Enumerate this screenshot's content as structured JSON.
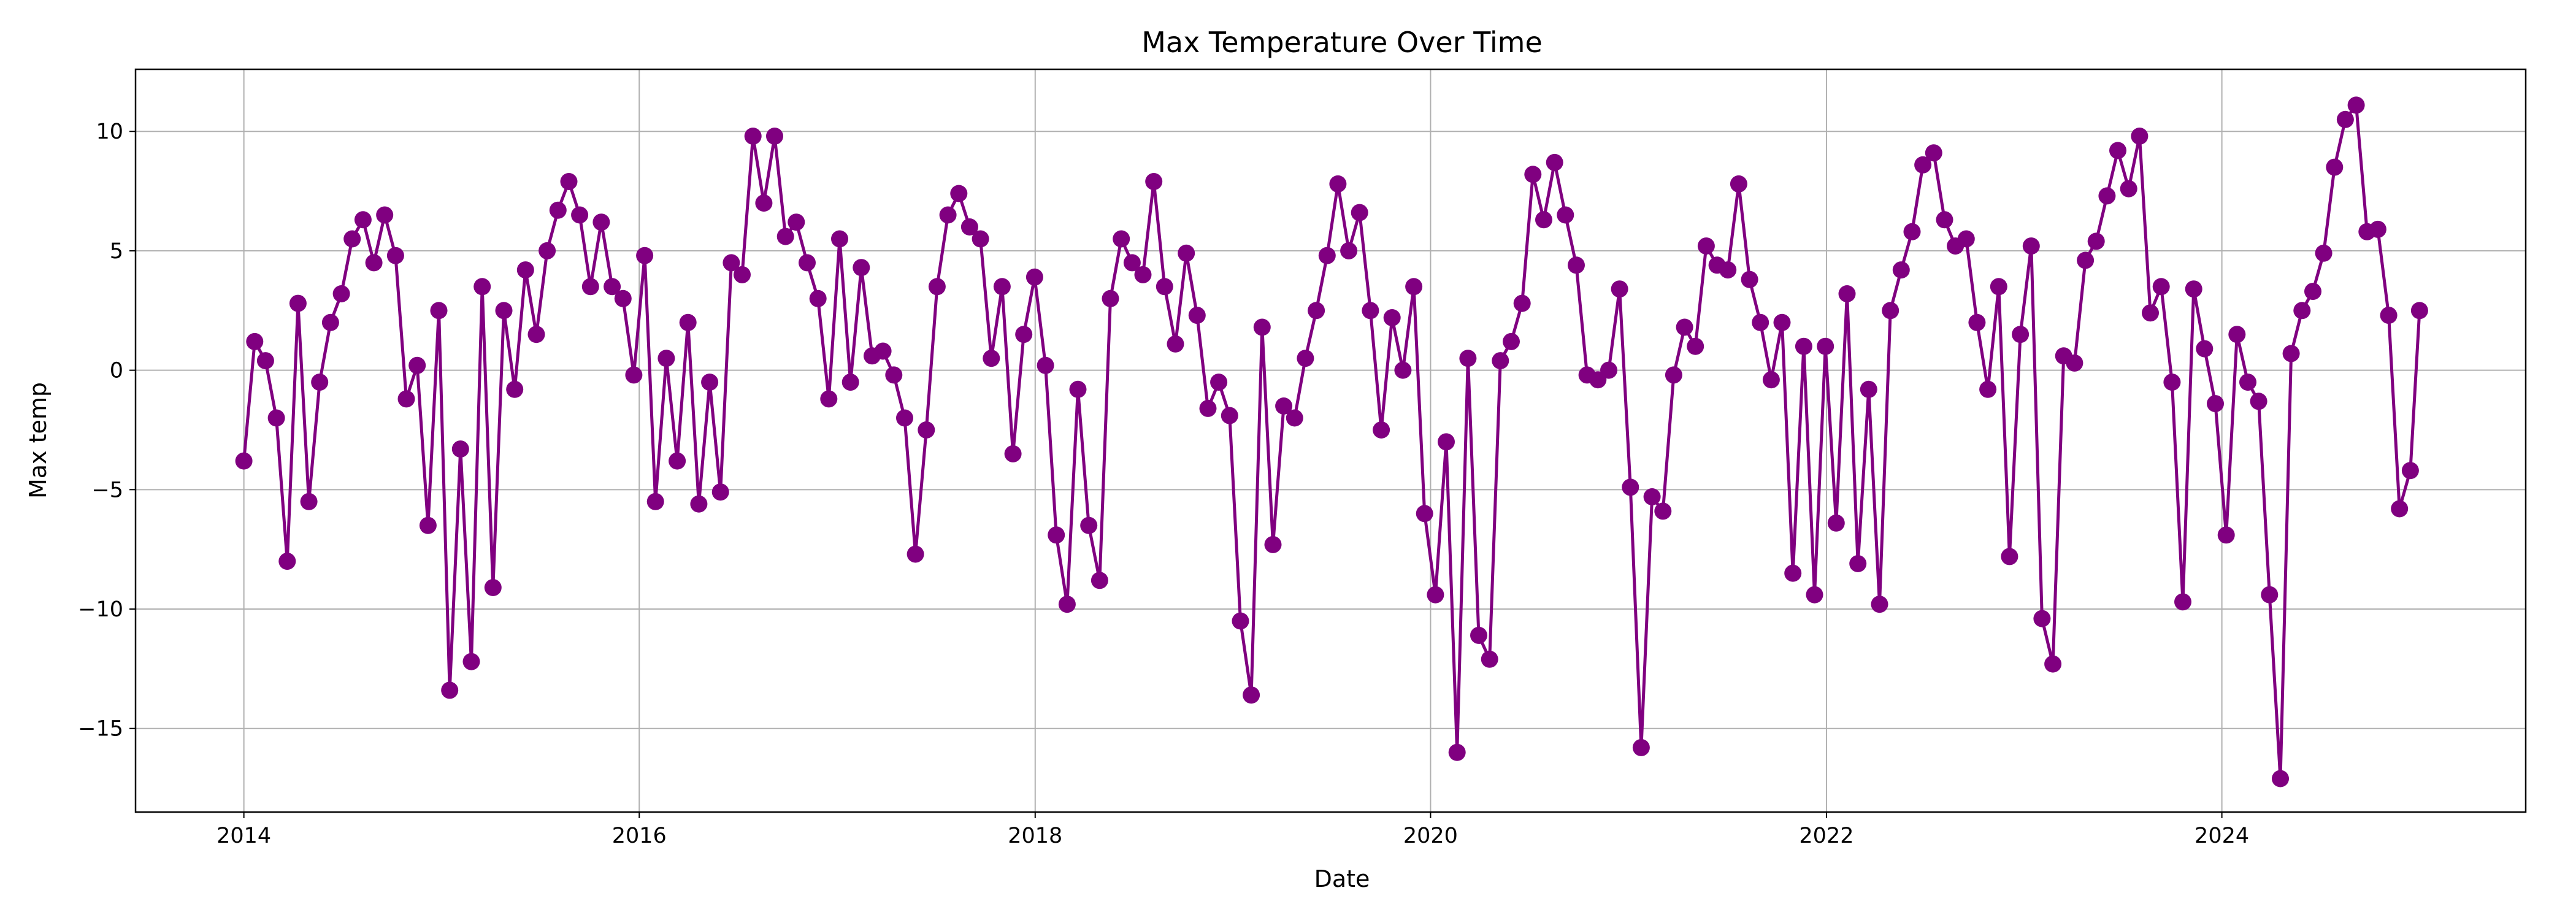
{
  "chart_data": {
    "type": "line",
    "title": "Max Temperature Over Time",
    "xlabel": "Date",
    "ylabel": "Max temp",
    "x_ticks": [
      "2014",
      "2016",
      "2018",
      "2020",
      "2022",
      "2024"
    ],
    "y_ticks": [
      10,
      5,
      0,
      -5,
      -10,
      -15
    ],
    "xlim": [
      "2013-06-15",
      "2025-07-15"
    ],
    "ylim": [
      -18.5,
      12.6
    ],
    "grid": true,
    "marker": "circle",
    "color": "#800080",
    "series": [
      {
        "x": [
          "2014-01-01",
          "2014-01-21",
          "2014-02-10",
          "2014-03-02",
          "2014-03-22",
          "2014-04-11",
          "2014-05-01",
          "2014-05-21",
          "2014-06-10",
          "2014-06-30",
          "2014-07-20",
          "2014-08-09",
          "2014-08-29",
          "2014-09-18",
          "2014-10-08",
          "2014-10-28",
          "2014-11-17",
          "2014-12-07",
          "2014-12-27",
          "2015-01-16",
          "2015-02-05",
          "2015-02-25",
          "2015-03-17",
          "2015-04-06",
          "2015-04-26",
          "2015-05-16",
          "2015-06-05",
          "2015-06-25",
          "2015-07-15",
          "2015-08-04",
          "2015-08-24",
          "2015-09-13",
          "2015-10-03",
          "2015-10-23",
          "2015-11-12",
          "2015-12-02",
          "2015-12-22",
          "2016-01-11",
          "2016-01-31",
          "2016-02-20",
          "2016-03-11",
          "2016-03-31",
          "2016-04-20",
          "2016-05-10",
          "2016-05-30",
          "2016-06-19",
          "2016-07-09",
          "2016-07-29",
          "2016-08-18",
          "2016-09-07",
          "2016-09-27",
          "2016-10-17",
          "2016-11-06",
          "2016-11-26",
          "2016-12-16",
          "2017-01-05",
          "2017-01-25",
          "2017-02-14",
          "2017-03-06",
          "2017-03-26",
          "2017-04-15",
          "2017-05-05",
          "2017-05-25",
          "2017-06-14",
          "2017-07-04",
          "2017-07-24",
          "2017-08-13",
          "2017-09-02",
          "2017-09-22",
          "2017-10-12",
          "2017-11-01",
          "2017-11-21",
          "2017-12-11",
          "2017-12-31",
          "2018-01-20",
          "2018-02-09",
          "2018-03-01",
          "2018-03-21",
          "2018-04-10",
          "2018-04-30",
          "2018-05-20",
          "2018-06-09",
          "2018-06-29",
          "2018-07-19",
          "2018-08-08",
          "2018-08-28",
          "2018-09-17",
          "2018-10-07",
          "2018-10-27",
          "2018-11-16",
          "2018-12-06",
          "2018-12-26",
          "2019-01-15",
          "2019-02-04",
          "2019-02-24",
          "2019-03-16",
          "2019-04-05",
          "2019-04-25",
          "2019-05-15",
          "2019-06-04",
          "2019-06-24",
          "2019-07-14",
          "2019-08-03",
          "2019-08-23",
          "2019-09-12",
          "2019-10-02",
          "2019-10-22",
          "2019-11-11",
          "2019-12-01",
          "2019-12-21",
          "2020-01-10",
          "2020-01-30",
          "2020-02-19",
          "2020-03-10",
          "2020-03-30",
          "2020-04-19",
          "2020-05-09",
          "2020-05-29",
          "2020-06-18",
          "2020-07-08",
          "2020-07-28",
          "2020-08-17",
          "2020-09-06",
          "2020-09-26",
          "2020-10-16",
          "2020-11-05",
          "2020-11-25",
          "2020-12-15",
          "2021-01-04",
          "2021-01-24",
          "2021-02-13",
          "2021-03-05",
          "2021-03-25",
          "2021-04-14",
          "2021-05-04",
          "2021-05-24",
          "2021-06-13",
          "2021-07-03",
          "2021-07-23",
          "2021-08-12",
          "2021-09-01",
          "2021-09-21",
          "2021-10-11",
          "2021-10-31",
          "2021-11-20",
          "2021-12-10",
          "2021-12-30",
          "2022-01-19",
          "2022-02-08",
          "2022-02-28",
          "2022-03-20",
          "2022-04-09",
          "2022-04-29",
          "2022-05-19",
          "2022-06-08",
          "2022-06-28",
          "2022-07-18",
          "2022-08-07",
          "2022-08-27",
          "2022-09-16",
          "2022-10-06",
          "2022-10-26",
          "2022-11-15",
          "2022-12-05",
          "2022-12-25",
          "2023-01-14",
          "2023-02-03",
          "2023-02-23",
          "2023-03-15",
          "2023-04-04",
          "2023-04-24",
          "2023-05-14",
          "2023-06-03",
          "2023-06-23",
          "2023-07-13",
          "2023-08-02",
          "2023-08-22",
          "2023-09-11",
          "2023-10-01",
          "2023-10-21",
          "2023-11-10",
          "2023-11-30",
          "2023-12-20",
          "2024-01-09",
          "2024-01-29",
          "2024-02-18",
          "2024-03-09",
          "2024-03-29",
          "2024-04-18",
          "2024-05-08",
          "2024-05-28",
          "2024-06-17",
          "2024-07-07",
          "2024-07-27",
          "2024-08-16",
          "2024-09-05",
          "2024-09-25",
          "2024-10-15",
          "2024-11-04",
          "2024-11-24",
          "2024-12-14",
          "2024-12-31"
        ],
        "values": [
          -3.8,
          1.2,
          0.4,
          -2.0,
          -8.0,
          2.8,
          -5.5,
          -0.5,
          2.0,
          3.2,
          5.5,
          6.3,
          4.5,
          6.5,
          4.8,
          -1.2,
          0.2,
          -6.5,
          2.5,
          -13.4,
          -3.3,
          -12.2,
          3.5,
          -9.1,
          2.5,
          -0.8,
          4.2,
          1.5,
          5.0,
          6.7,
          7.9,
          6.5,
          3.5,
          6.2,
          3.5,
          3.0,
          -0.2,
          4.8,
          -5.5,
          0.5,
          -3.8,
          2.0,
          -5.6,
          -0.5,
          -5.1,
          4.5,
          4.0,
          9.8,
          7.0,
          9.8,
          5.6,
          6.2,
          4.5,
          3.0,
          -1.2,
          5.5,
          -0.5,
          4.3,
          0.6,
          0.8,
          -0.2,
          -2.0,
          -7.7,
          -2.5,
          3.5,
          6.5,
          7.4,
          6.0,
          5.5,
          0.5,
          3.5,
          -3.5,
          1.5,
          3.9,
          0.2,
          -6.9,
          -9.8,
          -0.8,
          -6.5,
          -8.8,
          3.0,
          5.5,
          4.5,
          4.0,
          7.9,
          3.5,
          1.1,
          4.9,
          2.3,
          -1.6,
          -0.5,
          -1.9,
          -10.5,
          -13.6,
          1.8,
          -7.3,
          -1.5,
          -2.0,
          0.5,
          2.5,
          4.8,
          7.8,
          5.0,
          6.6,
          2.5,
          -2.5,
          2.2,
          0.0,
          3.5,
          -6.0,
          -9.4,
          -3.0,
          -16.0,
          0.5,
          -11.1,
          -12.1,
          0.4,
          1.2,
          2.8,
          8.2,
          6.3,
          8.7,
          6.5,
          4.4,
          -0.2,
          -0.4,
          0.0,
          3.4,
          -4.9,
          -15.8,
          -5.3,
          -5.9,
          -0.2,
          1.8,
          1.0,
          5.2,
          4.4,
          4.2,
          7.8,
          3.8,
          2.0,
          -0.4,
          2.0,
          -8.5,
          1.0,
          -9.4,
          1.0,
          -6.4,
          3.2,
          -8.1,
          -0.8,
          -9.8,
          2.5,
          4.2,
          5.8,
          8.6,
          9.1,
          6.3,
          5.2,
          5.5,
          2.0,
          -0.8,
          3.5,
          -7.8,
          1.5,
          5.2,
          -10.4,
          -12.3,
          0.6,
          0.3,
          4.6,
          5.4,
          7.3,
          9.2,
          7.6,
          9.8,
          2.4,
          3.5,
          -0.5,
          -9.7,
          3.4,
          0.9,
          -1.4,
          -6.9,
          1.5,
          -0.5,
          -1.3,
          -9.4,
          -17.1,
          0.7,
          2.5,
          3.3,
          4.9,
          8.5,
          10.5,
          11.1,
          5.8,
          5.9,
          2.3,
          -5.8,
          -4.2,
          2.5
        ]
      }
    ]
  }
}
